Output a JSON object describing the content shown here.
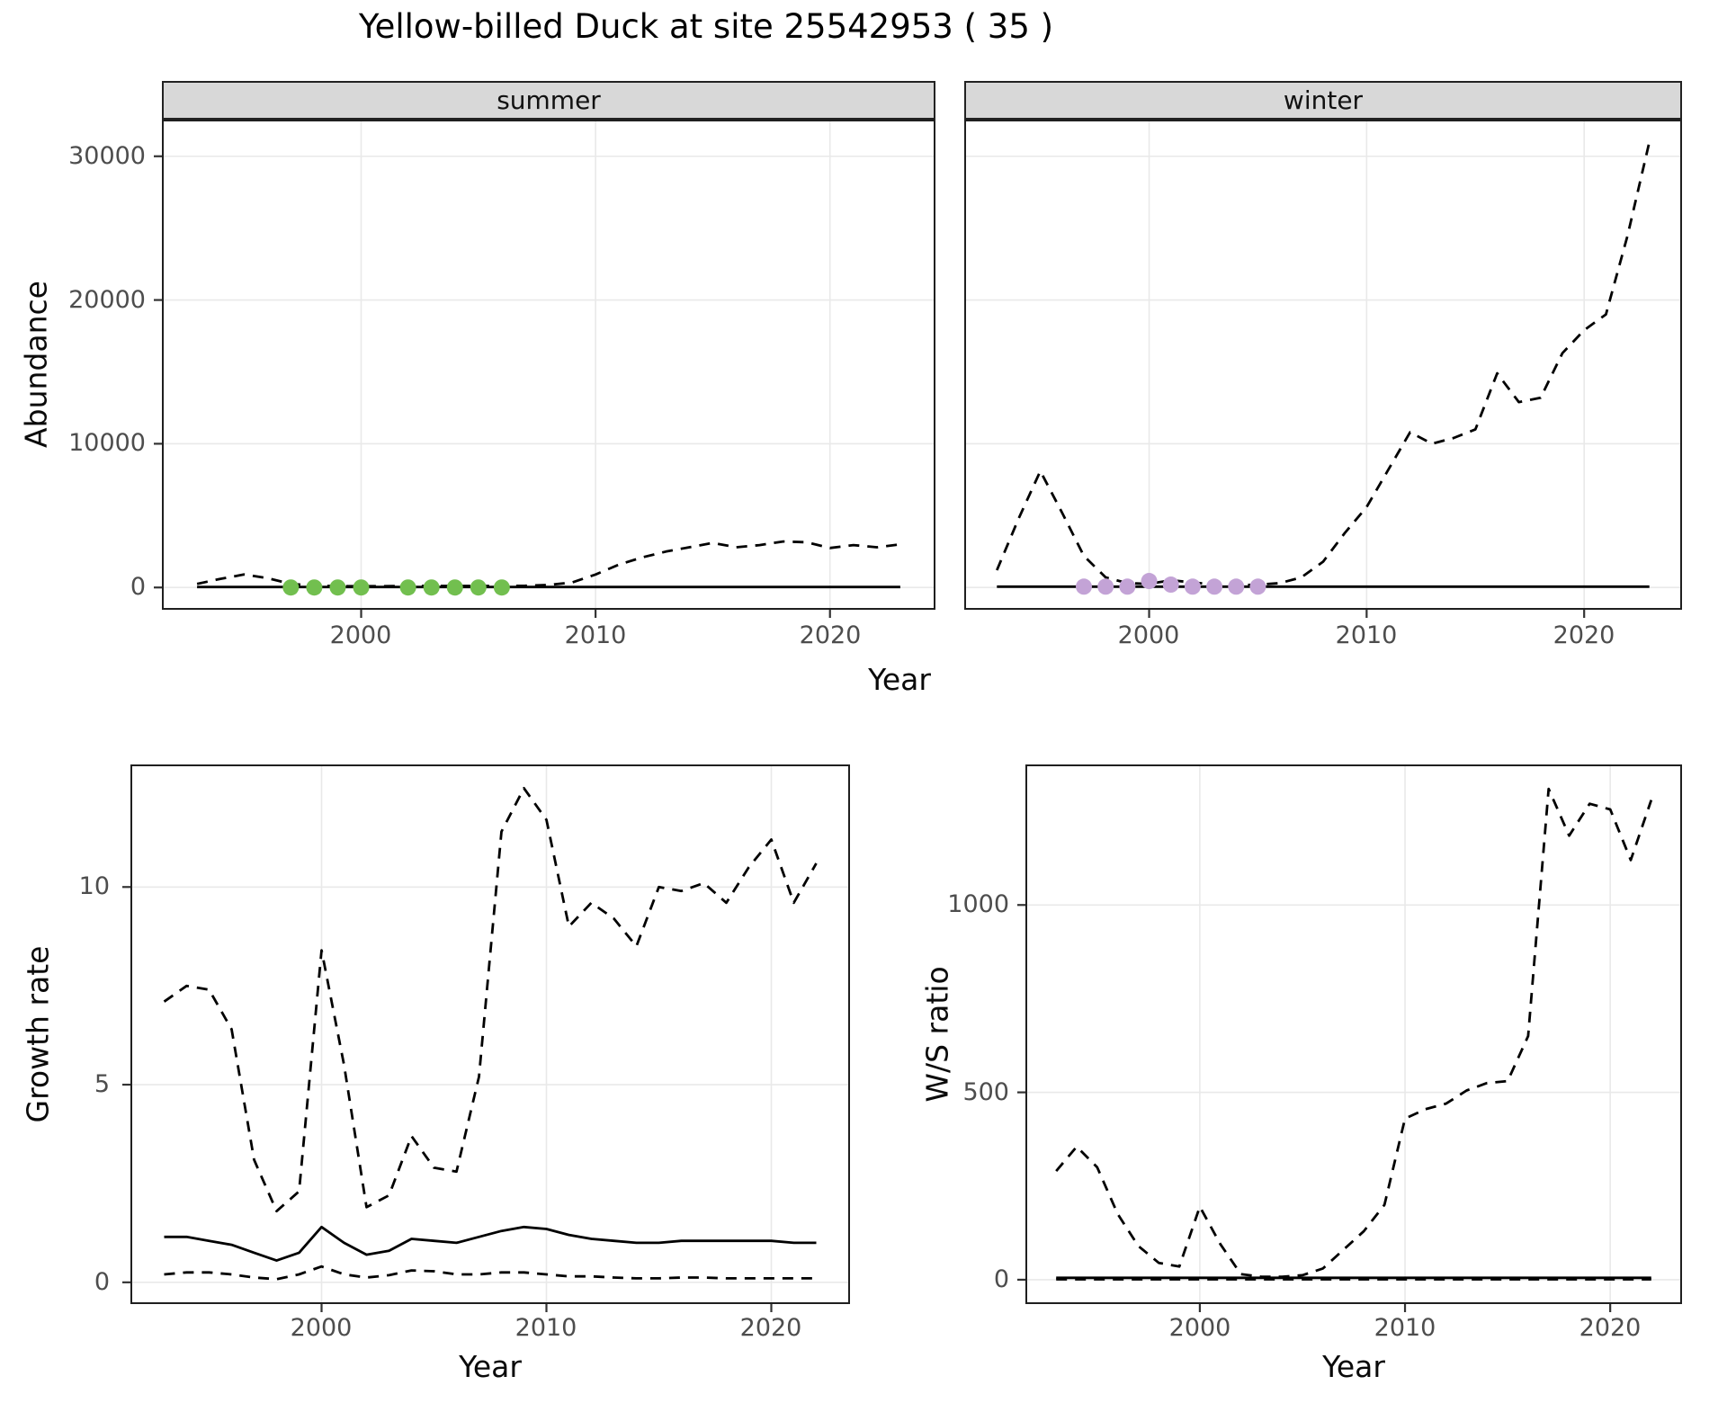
{
  "title": "Yellow-billed Duck at site 25542953 ( 35 )",
  "colors": {
    "summer_points": "#72bf4f",
    "winter_points": "#c3a3d6",
    "line": "#000000",
    "grid": "#e9e9e9",
    "strip_bg": "#d8d8d8",
    "axis_text": "#4d4d4d"
  },
  "chart_data": [
    {
      "id": "abundance-by-season",
      "type": "line",
      "xlabel": "Year",
      "ylabel": "Abundance",
      "xlim": [
        1991.5,
        2024.5
      ],
      "ylim": [
        -1550,
        32550
      ],
      "xticks": [
        2000,
        2010,
        2020
      ],
      "yticks": [
        0,
        10000,
        20000,
        30000
      ],
      "grid": "major",
      "legend": "none",
      "panels": [
        {
          "label": "summer",
          "series": [
            {
              "name": "upper-ci",
              "style": "dashed",
              "color": "#000000",
              "years": [
                1993,
                1994,
                1995,
                1996,
                1997,
                1998,
                1999,
                2000,
                2001,
                2002,
                2003,
                2004,
                2005,
                2006,
                2007,
                2008,
                2009,
                2010,
                2011,
                2012,
                2013,
                2014,
                2015,
                2016,
                2017,
                2018,
                2019,
                2020,
                2021,
                2022,
                2023
              ],
              "values": [
                250,
                600,
                900,
                650,
                250,
                120,
                90,
                90,
                90,
                110,
                110,
                110,
                110,
                110,
                120,
                180,
                350,
                900,
                1600,
                2100,
                2500,
                2800,
                3100,
                2800,
                2950,
                3200,
                3150,
                2750,
                2950,
                2800,
                3000
              ]
            },
            {
              "name": "estimate",
              "style": "solid",
              "color": "#000000",
              "years": [
                1993,
                1994,
                1995,
                1996,
                1997,
                1998,
                1999,
                2000,
                2001,
                2002,
                2003,
                2004,
                2005,
                2006,
                2007,
                2008,
                2009,
                2010,
                2011,
                2012,
                2013,
                2014,
                2015,
                2016,
                2017,
                2018,
                2019,
                2020,
                2021,
                2022,
                2023
              ],
              "values": [
                30,
                30,
                30,
                30,
                30,
                30,
                30,
                30,
                30,
                30,
                30,
                30,
                30,
                30,
                30,
                30,
                30,
                30,
                30,
                30,
                30,
                30,
                30,
                30,
                30,
                30,
                30,
                30,
                30,
                30,
                30
              ]
            },
            {
              "name": "summer-count-points",
              "style": "points",
              "color": "#72bf4f",
              "years": [
                1997,
                1998,
                1999,
                2000,
                2002,
                2003,
                2004,
                2005,
                2006
              ],
              "values": [
                0,
                0,
                0,
                0,
                0,
                0,
                0,
                0,
                0
              ]
            }
          ]
        },
        {
          "label": "winter",
          "series": [
            {
              "name": "upper-ci",
              "style": "dashed",
              "color": "#000000",
              "years": [
                1993,
                1994,
                1995,
                1996,
                1997,
                1998,
                1999,
                2000,
                2001,
                2002,
                2003,
                2004,
                2005,
                2006,
                2007,
                2008,
                2009,
                2010,
                2011,
                2012,
                2013,
                2014,
                2015,
                2016,
                2017,
                2018,
                2019,
                2020,
                2021,
                2022,
                2023
              ],
              "values": [
                1200,
                4800,
                8100,
                5200,
                2200,
                700,
                300,
                250,
                500,
                350,
                200,
                150,
                200,
                300,
                700,
                1800,
                3800,
                5600,
                8200,
                10800,
                10000,
                10400,
                11000,
                14900,
                12900,
                13200,
                16300,
                17900,
                19000,
                24500,
                31000
              ]
            },
            {
              "name": "estimate",
              "style": "solid",
              "color": "#000000",
              "years": [
                1993,
                1994,
                1995,
                1996,
                1997,
                1998,
                1999,
                2000,
                2001,
                2002,
                2003,
                2004,
                2005,
                2006,
                2007,
                2008,
                2009,
                2010,
                2011,
                2012,
                2013,
                2014,
                2015,
                2016,
                2017,
                2018,
                2019,
                2020,
                2021,
                2022,
                2023
              ],
              "values": [
                60,
                60,
                60,
                60,
                60,
                60,
                60,
                60,
                60,
                60,
                60,
                60,
                60,
                60,
                60,
                60,
                60,
                60,
                60,
                60,
                60,
                60,
                60,
                60,
                60,
                60,
                60,
                60,
                60,
                60,
                60
              ]
            },
            {
              "name": "winter-count-points",
              "style": "points",
              "color": "#c3a3d6",
              "years": [
                1997,
                1998,
                1999,
                2000,
                2001,
                2002,
                2003,
                2004,
                2005
              ],
              "values": [
                60,
                60,
                60,
                450,
                200,
                60,
                60,
                60,
                60
              ]
            }
          ]
        }
      ]
    },
    {
      "id": "growth-rate",
      "type": "line",
      "xlabel": "Year",
      "ylabel": "Growth rate",
      "xlim": [
        1991.5,
        2023.5
      ],
      "ylim": [
        -0.55,
        13.1
      ],
      "xticks": [
        2000,
        2010,
        2020
      ],
      "yticks": [
        0,
        5,
        10
      ],
      "grid": "major",
      "legend": "none",
      "panels": [
        {
          "label": "",
          "series": [
            {
              "name": "upper-ci",
              "style": "dashed",
              "color": "#000000",
              "years": [
                1993,
                1994,
                1995,
                1996,
                1997,
                1998,
                1999,
                2000,
                2001,
                2002,
                2003,
                2004,
                2005,
                2006,
                2007,
                2008,
                2009,
                2010,
                2011,
                2012,
                2013,
                2014,
                2015,
                2016,
                2017,
                2018,
                2019,
                2020,
                2021,
                2022
              ],
              "values": [
                7.1,
                7.5,
                7.4,
                6.4,
                3.1,
                1.8,
                2.3,
                8.4,
                5.5,
                1.9,
                2.2,
                3.7,
                2.9,
                2.8,
                5.2,
                11.4,
                12.5,
                11.7,
                9.0,
                9.6,
                9.2,
                8.5,
                10.0,
                9.9,
                10.1,
                9.6,
                10.5,
                11.2,
                9.6,
                10.6
              ]
            },
            {
              "name": "estimate",
              "style": "solid",
              "color": "#000000",
              "years": [
                1993,
                1994,
                1995,
                1996,
                1997,
                1998,
                1999,
                2000,
                2001,
                2002,
                2003,
                2004,
                2005,
                2006,
                2007,
                2008,
                2009,
                2010,
                2011,
                2012,
                2013,
                2014,
                2015,
                2016,
                2017,
                2018,
                2019,
                2020,
                2021,
                2022
              ],
              "values": [
                1.15,
                1.15,
                1.05,
                0.95,
                0.75,
                0.55,
                0.75,
                1.4,
                1.0,
                0.7,
                0.8,
                1.1,
                1.05,
                1.0,
                1.15,
                1.3,
                1.4,
                1.35,
                1.2,
                1.1,
                1.05,
                1.0,
                1.0,
                1.05,
                1.05,
                1.05,
                1.05,
                1.05,
                1.0,
                1.0
              ]
            },
            {
              "name": "lower-ci",
              "style": "dashed",
              "color": "#000000",
              "years": [
                1993,
                1994,
                1995,
                1996,
                1997,
                1998,
                1999,
                2000,
                2001,
                2002,
                2003,
                2004,
                2005,
                2006,
                2007,
                2008,
                2009,
                2010,
                2011,
                2012,
                2013,
                2014,
                2015,
                2016,
                2017,
                2018,
                2019,
                2020,
                2021,
                2022
              ],
              "values": [
                0.2,
                0.25,
                0.25,
                0.2,
                0.12,
                0.08,
                0.2,
                0.4,
                0.2,
                0.12,
                0.18,
                0.3,
                0.28,
                0.2,
                0.2,
                0.25,
                0.25,
                0.2,
                0.15,
                0.15,
                0.12,
                0.1,
                0.1,
                0.12,
                0.12,
                0.1,
                0.1,
                0.1,
                0.1,
                0.1
              ]
            }
          ]
        }
      ]
    },
    {
      "id": "ws-ratio",
      "type": "line",
      "xlabel": "Year",
      "ylabel": "W/S ratio",
      "xlim": [
        1991.5,
        2023.5
      ],
      "ylim": [
        -65,
        1375
      ],
      "xticks": [
        2000,
        2010,
        2020
      ],
      "yticks": [
        0,
        500,
        1000
      ],
      "grid": "major",
      "legend": "none",
      "panels": [
        {
          "label": "",
          "series": [
            {
              "name": "upper-ci",
              "style": "dashed",
              "color": "#000000",
              "years": [
                1993,
                1994,
                1995,
                1996,
                1997,
                1998,
                1999,
                2000,
                2001,
                2002,
                2003,
                2004,
                2005,
                2006,
                2007,
                2008,
                2009,
                2010,
                2011,
                2012,
                2013,
                2014,
                2015,
                2016,
                2017,
                2018,
                2019,
                2020,
                2021,
                2022
              ],
              "values": [
                290,
                355,
                300,
                175,
                90,
                45,
                35,
                195,
                95,
                15,
                8,
                8,
                12,
                30,
                80,
                130,
                200,
                430,
                455,
                470,
                505,
                525,
                530,
                650,
                1310,
                1185,
                1270,
                1255,
                1120,
                1280
              ]
            },
            {
              "name": "estimate",
              "style": "solid",
              "color": "#000000",
              "years": [
                1993,
                1994,
                1995,
                1996,
                1997,
                1998,
                1999,
                2000,
                2001,
                2002,
                2003,
                2004,
                2005,
                2006,
                2007,
                2008,
                2009,
                2010,
                2011,
                2012,
                2013,
                2014,
                2015,
                2016,
                2017,
                2018,
                2019,
                2020,
                2021,
                2022
              ],
              "values": [
                5,
                5,
                5,
                5,
                5,
                5,
                5,
                5,
                5,
                5,
                5,
                5,
                5,
                5,
                5,
                5,
                5,
                5,
                5,
                5,
                5,
                5,
                5,
                5,
                5,
                5,
                5,
                5,
                5,
                5
              ]
            },
            {
              "name": "lower-ci",
              "style": "dashed",
              "color": "#000000",
              "years": [
                1993,
                1994,
                1995,
                1996,
                1997,
                1998,
                1999,
                2000,
                2001,
                2002,
                2003,
                2004,
                2005,
                2006,
                2007,
                2008,
                2009,
                2010,
                2011,
                2012,
                2013,
                2014,
                2015,
                2016,
                2017,
                2018,
                2019,
                2020,
                2021,
                2022
              ],
              "values": [
                1,
                1,
                1,
                1,
                1,
                1,
                1,
                1,
                1,
                1,
                1,
                1,
                1,
                1,
                1,
                1,
                1,
                1,
                1,
                1,
                1,
                1,
                1,
                1,
                1,
                1,
                1,
                1,
                1,
                1
              ]
            }
          ]
        }
      ]
    }
  ]
}
